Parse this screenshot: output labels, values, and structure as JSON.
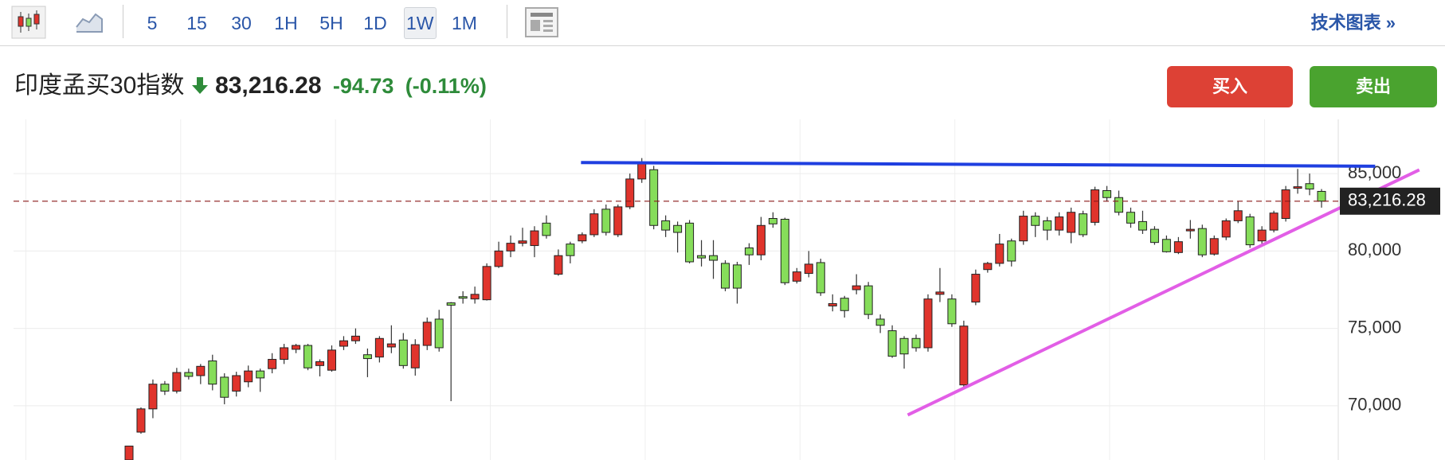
{
  "toolbar": {
    "intervals": [
      "5",
      "15",
      "30",
      "1H",
      "5H",
      "1D",
      "1W",
      "1M"
    ],
    "selected": 6,
    "tech_chart": "技术图表 »"
  },
  "header": {
    "name": "印度孟买30指数",
    "price": "83,216.28",
    "change": "-94.73",
    "change_pct": "(-0.11%)"
  },
  "buttons": {
    "buy": "买入",
    "sell": "卖出"
  },
  "chart_data": {
    "type": "candlestick",
    "open": [
      66500,
      68300,
      69800,
      71400,
      70950,
      72150,
      71950,
      72900,
      71850,
      70950,
      71550,
      72250,
      72400,
      73000,
      73650,
      73900,
      72600,
      72300,
      73850,
      74200,
      73300,
      73150,
      73800,
      74250,
      72450,
      73900,
      75600,
      76650,
      77050,
      76900,
      76850,
      79000,
      80000,
      80500,
      80350,
      81800,
      78500,
      80450,
      80650,
      81050,
      82700,
      81050,
      82850,
      84650,
      85250,
      81950,
      81650,
      81800,
      79700,
      79700,
      79200,
      79100,
      80200,
      79750,
      82100,
      82050,
      78050,
      78550,
      79250,
      76450,
      76950,
      77500,
      77750,
      75600,
      74850,
      74350,
      74350,
      73750,
      77200,
      76900,
      71350,
      76700,
      78800,
      79200,
      80650,
      80650,
      82250,
      81950,
      81350,
      81200,
      82400,
      81850,
      83900,
      83450,
      82500,
      81900,
      81400,
      80750,
      79900,
      81300,
      81450,
      79800,
      80900,
      81950,
      82200,
      80650,
      81350,
      82100,
      84050,
      84350,
      83850
    ],
    "high": [
      67400,
      69900,
      71700,
      71600,
      72450,
      72400,
      72700,
      73300,
      72100,
      72200,
      72600,
      72400,
      73400,
      74000,
      74000,
      74000,
      73000,
      73900,
      74500,
      75000,
      73700,
      74500,
      75200,
      74700,
      74300,
      75700,
      76200,
      76700,
      77400,
      77700,
      79200,
      80600,
      81000,
      81500,
      81600,
      82300,
      80100,
      80600,
      81200,
      82700,
      83000,
      83000,
      85000,
      86000,
      85500,
      82300,
      81900,
      82000,
      80700,
      80700,
      79400,
      79300,
      80500,
      82200,
      82500,
      82150,
      78900,
      80000,
      79500,
      77200,
      77100,
      78500,
      78000,
      75900,
      75200,
      74500,
      74600,
      77200,
      78900,
      77200,
      75500,
      78800,
      79300,
      81100,
      80800,
      82600,
      82500,
      82200,
      82500,
      82800,
      82600,
      84150,
      84200,
      83900,
      82800,
      82600,
      81600,
      81000,
      80900,
      82000,
      81700,
      81000,
      82100,
      83200,
      82400,
      81600,
      82600,
      84200,
      85300,
      85000,
      84000
    ],
    "low": [
      66500,
      68200,
      69200,
      70700,
      70800,
      71700,
      71400,
      71000,
      70100,
      70600,
      71200,
      70900,
      72100,
      72700,
      73400,
      72300,
      71900,
      72200,
      73600,
      74000,
      71850,
      72800,
      73400,
      72400,
      71950,
      73600,
      73500,
      70300,
      76600,
      76600,
      76800,
      78900,
      79600,
      80300,
      79600,
      80800,
      78400,
      79200,
      80500,
      80900,
      81000,
      80900,
      82700,
      84400,
      81400,
      80900,
      79900,
      79200,
      79000,
      78200,
      77400,
      76600,
      79100,
      79400,
      81500,
      77800,
      77900,
      78300,
      77100,
      76100,
      75700,
      77200,
      75600,
      74700,
      73100,
      72400,
      73500,
      73500,
      76700,
      75100,
      71200,
      76500,
      78600,
      79000,
      79000,
      80400,
      80900,
      80700,
      81000,
      80500,
      80900,
      81650,
      83200,
      82300,
      81500,
      81100,
      80400,
      79900,
      79800,
      80800,
      79600,
      79700,
      80700,
      81800,
      80200,
      80400,
      81200,
      81900,
      83700,
      83600,
      82800
    ],
    "close": [
      67400,
      69800,
      71400,
      70950,
      72150,
      71900,
      72550,
      71400,
      70550,
      71950,
      72250,
      71800,
      73000,
      73750,
      73900,
      72450,
      72850,
      73600,
      74200,
      74500,
      73050,
      74350,
      74000,
      72600,
      73950,
      75400,
      73750,
      76500,
      76950,
      77200,
      79000,
      80000,
      80500,
      80650,
      81300,
      81000,
      79700,
      79700,
      81050,
      82400,
      81200,
      82850,
      84650,
      85650,
      81650,
      81350,
      81200,
      79300,
      79550,
      79400,
      77600,
      77600,
      79750,
      81650,
      81750,
      77950,
      78650,
      79150,
      77300,
      76600,
      76150,
      77750,
      75900,
      75200,
      73200,
      73350,
      73750,
      76900,
      77350,
      75300,
      75150,
      78500,
      79200,
      80450,
      79350,
      82250,
      81650,
      81350,
      82200,
      82500,
      81050,
      83950,
      83450,
      82500,
      81800,
      81350,
      80550,
      79950,
      80600,
      81400,
      79750,
      80800,
      81950,
      82600,
      80400,
      81350,
      82450,
      83950,
      84150,
      84000,
      83216.28
    ],
    "up_color": "#e0342c",
    "down_color": "#86dd5a",
    "ylim": [
      66500,
      88500
    ],
    "yticks": [
      {
        "value": 85000,
        "label": "85,000"
      },
      {
        "value": 80000,
        "label": "80,000"
      },
      {
        "value": 75000,
        "label": "75,000"
      },
      {
        "value": 70000,
        "label": "70,000"
      }
    ],
    "grid": true,
    "last_price": {
      "value": 83216.28,
      "label": "83,216.28"
    },
    "trendlines": [
      {
        "color": "#1f3fe0",
        "x": [
          37.9,
          104.5
        ],
        "y": [
          85714,
          85476
        ]
      },
      {
        "color": "#e25ee6",
        "x": [
          65.3,
          108.2
        ],
        "y": [
          69410,
          85240
        ]
      }
    ]
  }
}
